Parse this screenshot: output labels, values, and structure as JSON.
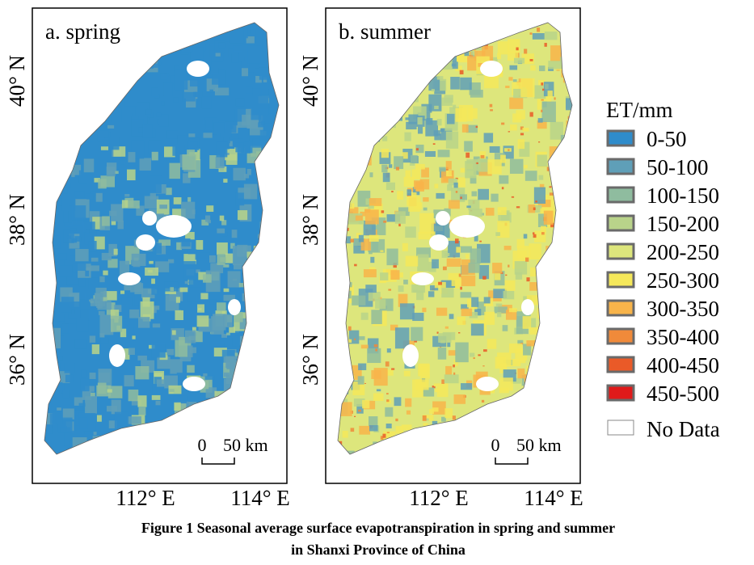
{
  "panels": [
    {
      "label": "a. spring",
      "lat_ticks": [
        "40° N",
        "38° N",
        "36° N"
      ],
      "lon_ticks": [
        "112° E",
        "114° E"
      ],
      "scale_bar": {
        "zero": "0",
        "distance": "50 km"
      }
    },
    {
      "label": "b. summer",
      "lat_ticks": [
        "40° N",
        "38° N",
        "36° N"
      ],
      "lon_ticks": [
        "112° E",
        "114° E"
      ],
      "scale_bar": {
        "zero": "0",
        "distance": "50 km"
      }
    }
  ],
  "legend": {
    "title": "ET/mm",
    "items": [
      {
        "label": "0-50",
        "color": "#2f8ccb"
      },
      {
        "label": "50-100",
        "color": "#5f9fb8"
      },
      {
        "label": "100-150",
        "color": "#8fbc9f"
      },
      {
        "label": "150-200",
        "color": "#b9d38a"
      },
      {
        "label": "200-250",
        "color": "#dde67c"
      },
      {
        "label": "250-300",
        "color": "#f5e85a"
      },
      {
        "label": "300-350",
        "color": "#f8b44a"
      },
      {
        "label": "350-400",
        "color": "#f08a3a"
      },
      {
        "label": "400-450",
        "color": "#ea5a28"
      },
      {
        "label": "450-500",
        "color": "#e01a1a"
      }
    ],
    "no_data": "No Data"
  },
  "caption": [
    "Figure 1  Seasonal average surface evapotranspiration in spring and summer",
    "in Shanxi Province of China"
  ]
}
